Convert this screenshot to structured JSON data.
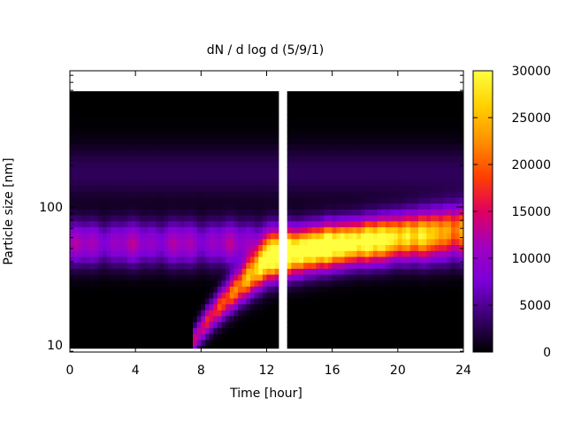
{
  "chart_data": {
    "type": "heatmap",
    "title": "dN / d log d (5/9/1)",
    "xlabel": "Time [hour]",
    "ylabel": "Particle size [nm]",
    "xlim": [
      0,
      24
    ],
    "x_ticks": [
      "0",
      "4",
      "8",
      "12",
      "16",
      "20",
      "24"
    ],
    "y_scale": "log",
    "y_ticks": [
      "10",
      "100"
    ],
    "colorbar": {
      "min": 0,
      "max": 30000,
      "ticks": [
        "0",
        "5000",
        "10000",
        "15000",
        "20000",
        "25000",
        "30000"
      ],
      "palette": [
        "#000000",
        "#3a0070",
        "#7a00d8",
        "#a000c0",
        "#e00060",
        "#ff4000",
        "#ff9000",
        "#ffd000",
        "#ffff40"
      ]
    },
    "data_gap_hours": [
      12.75,
      13.15
    ],
    "features": {
      "background_mode_size_nm": 55,
      "growth_start_hour": 7.5,
      "growth_start_size_nm": 10,
      "growth_peak_hour": 12,
      "growth_peak_size_nm": 40,
      "growth_end_hour": 24,
      "growth_end_size_nm": 75,
      "peak_value": 28000
    }
  }
}
